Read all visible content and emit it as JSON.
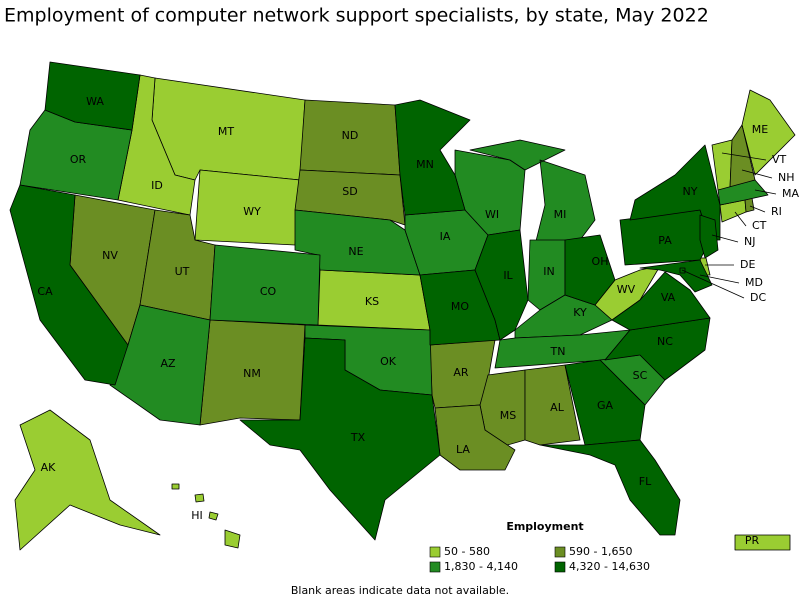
{
  "title": "Employment of computer network support specialists, by state, May 2022",
  "legend": {
    "title": "Employment",
    "classes": [
      {
        "label": "50 - 580",
        "color": "#9acd32",
        "states": [
          "MT",
          "ID",
          "WY",
          "KS",
          "WV",
          "AK",
          "HI",
          "PR",
          "ME",
          "VT",
          "CT",
          "DE"
        ]
      },
      {
        "label": "590 - 1,650",
        "color": "#6b8e23",
        "states": [
          "ND",
          "SD",
          "NV",
          "UT",
          "NM",
          "AR",
          "MS",
          "AL",
          "LA",
          "NH",
          "RI"
        ]
      },
      {
        "label": "1,830 - 4,140",
        "color": "#228b22",
        "states": [
          "OR",
          "NE",
          "CO",
          "AZ",
          "OK",
          "IA",
          "WI",
          "MI",
          "IN",
          "KY",
          "TN",
          "SC",
          "MA"
        ]
      },
      {
        "label": "4,320 - 14,630",
        "color": "#006400",
        "states": [
          "WA",
          "CA",
          "MN",
          "TX",
          "MO",
          "IL",
          "OH",
          "PA",
          "NY",
          "NC",
          "VA",
          "GA",
          "FL",
          "NJ",
          "MD",
          "DC"
        ]
      }
    ]
  },
  "note": "Blank areas indicate data not available."
}
